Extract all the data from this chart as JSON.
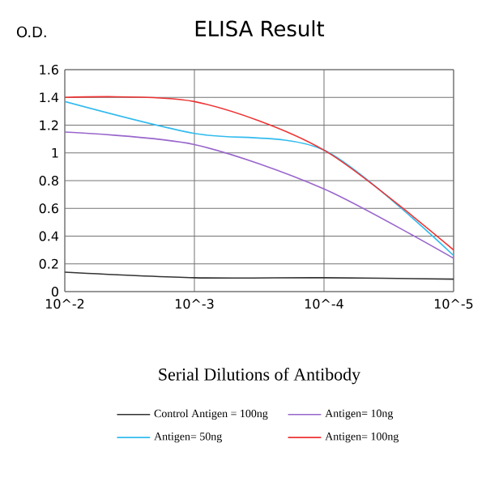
{
  "chart_data": {
    "type": "line",
    "title": "ELISA Result",
    "ylabel": "O.D.",
    "xlabel": "Serial Dilutions of Antibody",
    "categories": [
      "10^-2",
      "10^-3",
      "10^-4",
      "10^-5"
    ],
    "series": [
      {
        "name": "Control Antigen = 100ng",
        "color": "#333333",
        "values": [
          0.14,
          0.1,
          0.1,
          0.09
        ]
      },
      {
        "name": "Antigen= 10ng",
        "color": "#9966cc",
        "values": [
          1.15,
          1.06,
          0.74,
          0.24
        ]
      },
      {
        "name": "Antigen= 50ng",
        "color": "#33bbee",
        "values": [
          1.37,
          1.14,
          1.02,
          0.26
        ]
      },
      {
        "name": "Antigen= 100ng",
        "color": "#ee3333",
        "values": [
          1.4,
          1.37,
          1.02,
          0.3
        ]
      }
    ],
    "ylim": [
      0,
      1.6
    ],
    "yticks": [
      0,
      0.2,
      0.4,
      0.6,
      0.8,
      1,
      1.2,
      1.4,
      1.6
    ],
    "grid": true,
    "legend": "bottom"
  }
}
